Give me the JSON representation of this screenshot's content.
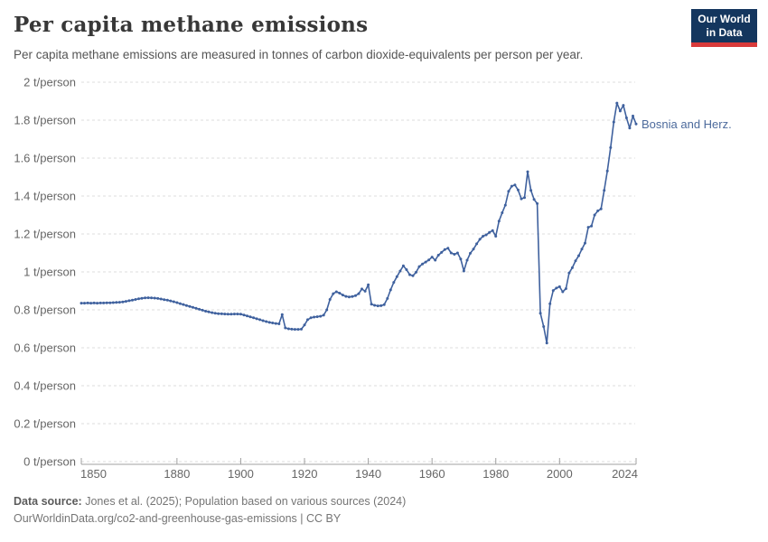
{
  "header": {
    "title": "Per capita methane emissions",
    "subtitle": "Per capita methane emissions are measured in tonnes of carbon dioxide-equivalents per person per year.",
    "logo": {
      "line1": "Our World",
      "line2": "in Data",
      "bg_color": "#14365e",
      "bar_color": "#d93a3a"
    }
  },
  "chart_data": {
    "type": "line",
    "title": "Per capita methane emissions",
    "unit": "t/person",
    "xlabel": "",
    "ylabel": "",
    "xlim": [
      1850,
      2024
    ],
    "ylim": [
      0,
      2
    ],
    "grid": true,
    "legend_position": "end-of-line",
    "x_tick_years": [
      1850,
      1880,
      1900,
      1920,
      1940,
      1960,
      1980,
      2000,
      2024
    ],
    "x_tick_labels": [
      "1850",
      "1880",
      "1900",
      "1920",
      "1940",
      "1960",
      "1980",
      "2000",
      "2024"
    ],
    "y_ticks": [
      0,
      0.2,
      0.4,
      0.6,
      0.8,
      1,
      1.2,
      1.4,
      1.6,
      1.8,
      2
    ],
    "y_tick_labels": [
      "0 t/person",
      "0.2 t/person",
      "0.4 t/person",
      "0.6 t/person",
      "0.8 t/person",
      "1 t/person",
      "1.2 t/person",
      "1.4 t/person",
      "1.6 t/person",
      "1.8 t/person",
      "2 t/person"
    ],
    "series_label": "Bosnia and Herz.",
    "series": [
      {
        "name": "Bosnia and Herz.",
        "color": "#3f619e",
        "x_start": 1850,
        "x_step": 1,
        "values": [
          0.835,
          0.835,
          0.836,
          0.835,
          0.836,
          0.835,
          0.836,
          0.836,
          0.837,
          0.837,
          0.838,
          0.839,
          0.84,
          0.842,
          0.845,
          0.848,
          0.851,
          0.855,
          0.858,
          0.861,
          0.863,
          0.864,
          0.863,
          0.862,
          0.86,
          0.857,
          0.854,
          0.851,
          0.847,
          0.843,
          0.838,
          0.833,
          0.828,
          0.823,
          0.818,
          0.813,
          0.808,
          0.803,
          0.798,
          0.793,
          0.789,
          0.785,
          0.782,
          0.78,
          0.779,
          0.778,
          0.777,
          0.777,
          0.778,
          0.778,
          0.777,
          0.773,
          0.768,
          0.763,
          0.758,
          0.753,
          0.748,
          0.743,
          0.738,
          0.734,
          0.731,
          0.728,
          0.726,
          0.775,
          0.705,
          0.7,
          0.698,
          0.697,
          0.697,
          0.698,
          0.72,
          0.748,
          0.758,
          0.762,
          0.764,
          0.766,
          0.772,
          0.8,
          0.855,
          0.885,
          0.895,
          0.888,
          0.878,
          0.871,
          0.868,
          0.87,
          0.875,
          0.885,
          0.91,
          0.898,
          0.932,
          0.83,
          0.824,
          0.821,
          0.822,
          0.827,
          0.86,
          0.905,
          0.945,
          0.975,
          1.005,
          1.032,
          1.012,
          0.985,
          0.98,
          0.998,
          1.028,
          1.042,
          1.052,
          1.063,
          1.078,
          1.062,
          1.088,
          1.103,
          1.118,
          1.125,
          1.1,
          1.093,
          1.1,
          1.068,
          1.005,
          1.062,
          1.098,
          1.12,
          1.148,
          1.172,
          1.188,
          1.195,
          1.208,
          1.218,
          1.188,
          1.268,
          1.312,
          1.352,
          1.425,
          1.452,
          1.458,
          1.432,
          1.385,
          1.392,
          1.528,
          1.43,
          1.382,
          1.36,
          0.782,
          0.712,
          0.625,
          0.832,
          0.902,
          0.915,
          0.922,
          0.895,
          0.912,
          0.995,
          1.022,
          1.058,
          1.085,
          1.12,
          1.152,
          1.235,
          1.242,
          1.3,
          1.322,
          1.332,
          1.43,
          1.532,
          1.655,
          1.79,
          1.89,
          1.848,
          1.878,
          1.812,
          1.758,
          1.822,
          1.78
        ]
      }
    ],
    "axis_color": "#a0a0a0",
    "gridline_color": "#dcdcdc",
    "tick_label_color": "#666666"
  },
  "footer": {
    "source_label": "Data source:",
    "source_text": " Jones et al. (2025); Population based on various sources (2024)",
    "link_text": "OurWorldinData.org/co2-and-greenhouse-gas-emissions | CC BY"
  }
}
